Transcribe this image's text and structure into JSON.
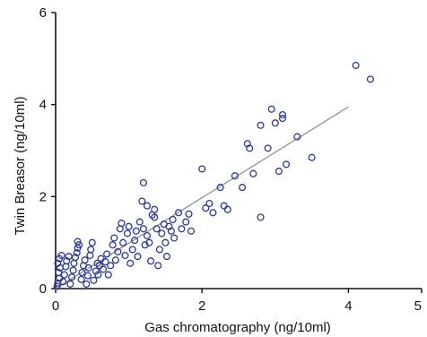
{
  "chart_data": {
    "type": "scatter",
    "title": "",
    "xlabel": "Gas chromatography (ng/10ml)",
    "ylabel": "Twin Breasor (ng/10ml)",
    "xlim": [
      0,
      5
    ],
    "ylim": [
      0,
      6
    ],
    "xticks": [
      0,
      2,
      4,
      5
    ],
    "xtick_labels": [
      "0",
      "2",
      "4",
      "5"
    ],
    "yticks": [
      0,
      2,
      4,
      6
    ],
    "ytick_labels": [
      "0",
      "2",
      "4",
      "6"
    ],
    "grid": false,
    "marker": "open-circle",
    "marker_color": "#2a3a9a",
    "fit_color": "#8a8a8a",
    "fit_line": {
      "x": [
        0,
        4.0
      ],
      "y": [
        0,
        3.95
      ]
    },
    "points": [
      [
        0.02,
        0.05
      ],
      [
        0.03,
        0.12
      ],
      [
        0.05,
        0.22
      ],
      [
        0.04,
        0.35
      ],
      [
        0.06,
        0.45
      ],
      [
        0.03,
        0.55
      ],
      [
        0.05,
        0.65
      ],
      [
        0.08,
        0.72
      ],
      [
        0.1,
        0.15
      ],
      [
        0.12,
        0.3
      ],
      [
        0.14,
        0.48
      ],
      [
        0.15,
        0.6
      ],
      [
        0.18,
        0.7
      ],
      [
        0.2,
        0.1
      ],
      [
        0.22,
        0.25
      ],
      [
        0.24,
        0.4
      ],
      [
        0.25,
        0.55
      ],
      [
        0.27,
        0.68
      ],
      [
        0.29,
        0.78
      ],
      [
        0.3,
        0.88
      ],
      [
        0.32,
        0.95
      ],
      [
        0.3,
        1.02
      ],
      [
        0.35,
        0.2
      ],
      [
        0.36,
        0.35
      ],
      [
        0.38,
        0.5
      ],
      [
        0.4,
        0.62
      ],
      [
        0.42,
        0.1
      ],
      [
        0.44,
        0.28
      ],
      [
        0.45,
        0.45
      ],
      [
        0.47,
        0.72
      ],
      [
        0.48,
        0.85
      ],
      [
        0.5,
        1.0
      ],
      [
        0.52,
        0.18
      ],
      [
        0.55,
        0.38
      ],
      [
        0.57,
        0.55
      ],
      [
        0.58,
        0.3
      ],
      [
        0.6,
        0.5
      ],
      [
        0.62,
        0.65
      ],
      [
        0.65,
        0.42
      ],
      [
        0.68,
        0.58
      ],
      [
        0.7,
        0.75
      ],
      [
        0.72,
        0.3
      ],
      [
        0.75,
        0.5
      ],
      [
        0.78,
        0.95
      ],
      [
        0.8,
        1.1
      ],
      [
        0.82,
        0.62
      ],
      [
        0.85,
        0.8
      ],
      [
        0.88,
        1.3
      ],
      [
        0.9,
        1.42
      ],
      [
        0.92,
        1.0
      ],
      [
        0.95,
        0.72
      ],
      [
        0.98,
        1.2
      ],
      [
        1.0,
        1.35
      ],
      [
        1.02,
        0.55
      ],
      [
        1.05,
        0.85
      ],
      [
        1.08,
        1.05
      ],
      [
        1.1,
        1.25
      ],
      [
        1.12,
        0.7
      ],
      [
        1.15,
        1.45
      ],
      [
        1.18,
        1.9
      ],
      [
        1.2,
        1.3
      ],
      [
        1.22,
        0.95
      ],
      [
        1.25,
        1.15
      ],
      [
        1.28,
        1.0
      ],
      [
        1.3,
        0.6
      ],
      [
        1.32,
        1.6
      ],
      [
        1.35,
        1.55
      ],
      [
        1.38,
        1.3
      ],
      [
        1.4,
        0.5
      ],
      [
        1.42,
        0.85
      ],
      [
        1.45,
        1.2
      ],
      [
        1.48,
        1.4
      ],
      [
        1.5,
        1.0
      ],
      [
        1.52,
        0.7
      ],
      [
        1.55,
        1.35
      ],
      [
        1.58,
        1.25
      ],
      [
        1.6,
        1.5
      ],
      [
        1.62,
        1.1
      ],
      [
        1.68,
        1.65
      ],
      [
        1.72,
        1.3
      ],
      [
        1.78,
        1.45
      ],
      [
        1.82,
        1.62
      ],
      [
        1.85,
        1.25
      ],
      [
        1.2,
        2.3
      ],
      [
        1.25,
        1.8
      ],
      [
        1.35,
        1.72
      ],
      [
        2.0,
        2.6
      ],
      [
        2.05,
        1.75
      ],
      [
        2.1,
        1.85
      ],
      [
        2.15,
        1.65
      ],
      [
        2.25,
        2.2
      ],
      [
        2.3,
        1.8
      ],
      [
        2.35,
        1.72
      ],
      [
        2.45,
        2.45
      ],
      [
        2.55,
        2.2
      ],
      [
        2.62,
        3.15
      ],
      [
        2.65,
        3.05
      ],
      [
        2.7,
        2.5
      ],
      [
        2.8,
        1.55
      ],
      [
        2.8,
        3.55
      ],
      [
        2.9,
        3.05
      ],
      [
        2.95,
        3.9
      ],
      [
        3.0,
        3.6
      ],
      [
        3.05,
        2.55
      ],
      [
        3.1,
        3.7
      ],
      [
        3.1,
        3.78
      ],
      [
        3.15,
        2.7
      ],
      [
        3.3,
        3.3
      ],
      [
        3.5,
        2.85
      ],
      [
        4.1,
        4.85
      ],
      [
        4.3,
        4.55
      ]
    ]
  }
}
